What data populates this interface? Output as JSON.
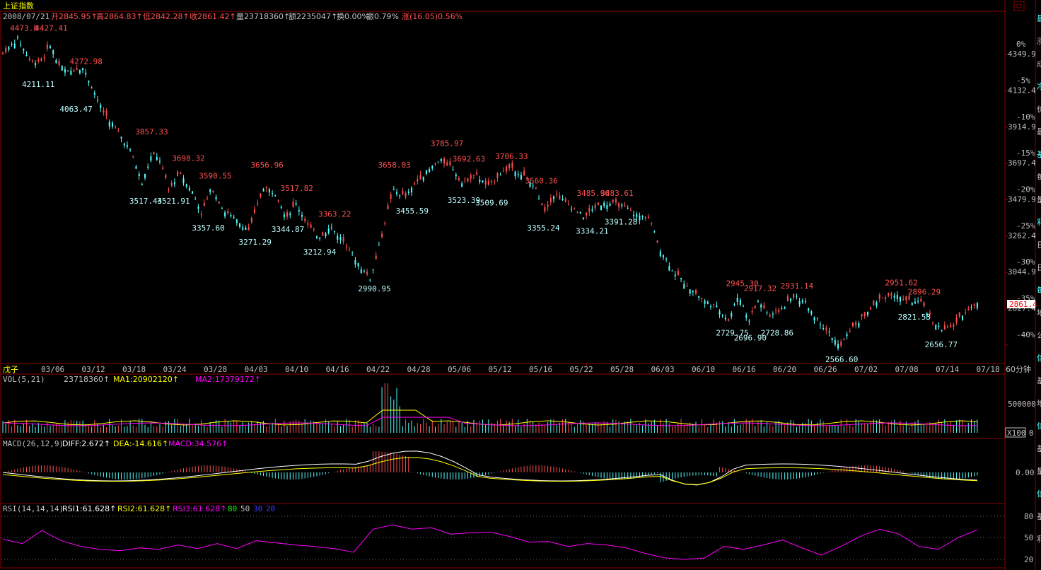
{
  "title": "上证指数",
  "header": {
    "date": "2008/07/21",
    "open": "开2845.95↑",
    "high": "高2864.83↑",
    "low": "低2842.28↑",
    "close": "收2861.42↑",
    "volume": "量23718360↑",
    "amount": "额2235047↑",
    "turnover": "换0.00%",
    "amplitude": "振0.79%",
    "change": "涨(16.05)0.56%"
  },
  "colors": {
    "up": "#ff5050",
    "down": "#54ffff",
    "ma1": "#ffff00",
    "ma2": "#ff00ff",
    "grid": "#8b0000"
  },
  "right_panel_chars": [
    "最",
    "涨",
    "成",
    "净",
    "价",
    "最",
    "基",
    "每",
    "量",
    "利",
    "日",
    "日",
    "每",
    "地",
    "公",
    "信",
    "基",
    "地",
    "信",
    "基",
    "量",
    "信",
    "基",
    "利"
  ],
  "last_price_tag": "2861.4",
  "period_label": "60分钟",
  "x_corner_label": "戊子",
  "date_ticks": [
    "03/06",
    "03/12",
    "03/18",
    "03/24",
    "03/28",
    "04/03",
    "04/10",
    "04/16",
    "04/22",
    "04/28",
    "05/06",
    "05/12",
    "05/16",
    "05/22",
    "05/28",
    "06/03",
    "06/10",
    "06/16",
    "06/20",
    "06/26",
    "07/02",
    "07/08",
    "07/14",
    "07/18"
  ],
  "price_axis": [
    {
      "pct": "0%",
      "price": "4349.9"
    },
    {
      "pct": "-5%",
      "price": "4132.4"
    },
    {
      "pct": "-10%",
      "price": "3914.9"
    },
    {
      "pct": "-15%",
      "price": "3697.4"
    },
    {
      "pct": "-20%",
      "price": "3479.9"
    },
    {
      "pct": "-25%",
      "price": "3262.4"
    },
    {
      "pct": "-30%",
      "price": "3044.9"
    },
    {
      "pct": "-35%",
      "price": "2827.4"
    },
    {
      "pct": "-40%",
      "price": ""
    }
  ],
  "vol_header": {
    "name": "VOL(5,21)",
    "value": "23718360↑",
    "ma1": "MA1:20902120↑",
    "ma2": "MA2:17379172↑"
  },
  "vol_axis": [
    "500000",
    "0"
  ],
  "vol_unit": "X100",
  "macd_header": {
    "name": "MACD(26,12,9)",
    "diff": "DIFF:2.672↑",
    "dea": "DEA:-14.616↑",
    "macd": "MACD:34.576↑"
  },
  "macd_axis": [
    "0.00"
  ],
  "rsi_header": {
    "name": "RSI(14,14,14)",
    "rsi1": "RSI1:61.628↑",
    "rsi2": "RSI2:61.628↑",
    "rsi3": "RSI3:61.628↑",
    "l80": "80",
    "l50": "50",
    "l30": "30",
    "l20": "20"
  },
  "rsi_axis": [
    "80",
    "50",
    "20"
  ],
  "chart_data": {
    "type": "candlestick",
    "price_range": [
      2520,
      4520
    ],
    "annotations": [
      {
        "text": "4473.Ⅲ",
        "x": 0.02,
        "price": 4480,
        "hi": true
      },
      {
        "text": "4427.41",
        "x": 0.045,
        "price": 4480,
        "hi": true
      },
      {
        "text": "4211.11",
        "x": 0.032,
        "price": 4220,
        "hi": false
      },
      {
        "text": "4272.98",
        "x": 0.08,
        "price": 4280,
        "hi": true
      },
      {
        "text": "4063.47",
        "x": 0.07,
        "price": 4070,
        "hi": false
      },
      {
        "text": "3857.33",
        "x": 0.146,
        "price": 3860,
        "hi": true
      },
      {
        "text": "3517.44",
        "x": 0.14,
        "price": 3520,
        "hi": false
      },
      {
        "text": "3698.32",
        "x": 0.183,
        "price": 3700,
        "hi": true
      },
      {
        "text": "3521.91",
        "x": 0.168,
        "price": 3520,
        "hi": false
      },
      {
        "text": "3590.55",
        "x": 0.21,
        "price": 3595,
        "hi": true
      },
      {
        "text": "3357.60",
        "x": 0.203,
        "price": 3360,
        "hi": false
      },
      {
        "text": "3656.96",
        "x": 0.262,
        "price": 3660,
        "hi": true
      },
      {
        "text": "3271.29",
        "x": 0.25,
        "price": 3275,
        "hi": false
      },
      {
        "text": "3517.82",
        "x": 0.292,
        "price": 3520,
        "hi": true
      },
      {
        "text": "3344.87",
        "x": 0.283,
        "price": 3350,
        "hi": false
      },
      {
        "text": "3363.22",
        "x": 0.33,
        "price": 3365,
        "hi": true
      },
      {
        "text": "3212.94",
        "x": 0.315,
        "price": 3215,
        "hi": false
      },
      {
        "text": "2990.95",
        "x": 0.37,
        "price": 2995,
        "hi": false
      },
      {
        "text": "3658.03",
        "x": 0.39,
        "price": 3660,
        "hi": true
      },
      {
        "text": "3455.59",
        "x": 0.408,
        "price": 3460,
        "hi": false
      },
      {
        "text": "3785.97",
        "x": 0.443,
        "price": 3790,
        "hi": true
      },
      {
        "text": "3692.63",
        "x": 0.465,
        "price": 3695,
        "hi": true
      },
      {
        "text": "3523.39",
        "x": 0.46,
        "price": 3525,
        "hi": false
      },
      {
        "text": "3509.69",
        "x": 0.488,
        "price": 3510,
        "hi": false
      },
      {
        "text": "3706.33",
        "x": 0.508,
        "price": 3710,
        "hi": true
      },
      {
        "text": "3560.36",
        "x": 0.538,
        "price": 3565,
        "hi": true
      },
      {
        "text": "3355.24",
        "x": 0.54,
        "price": 3360,
        "hi": false
      },
      {
        "text": "3485.96",
        "x": 0.59,
        "price": 3490,
        "hi": true
      },
      {
        "text": "3483.61",
        "x": 0.614,
        "price": 3490,
        "hi": true
      },
      {
        "text": "3334.21",
        "x": 0.589,
        "price": 3340,
        "hi": false
      },
      {
        "text": "3391.28",
        "x": 0.618,
        "price": 3395,
        "hi": false
      },
      {
        "text": "2945.30",
        "x": 0.74,
        "price": 2950,
        "hi": true
      },
      {
        "text": "2917.32",
        "x": 0.758,
        "price": 2920,
        "hi": true
      },
      {
        "text": "2931.14",
        "x": 0.795,
        "price": 2935,
        "hi": true
      },
      {
        "text": "2729.75",
        "x": 0.73,
        "price": 2730,
        "hi": false
      },
      {
        "text": "2696.90",
        "x": 0.748,
        "price": 2700,
        "hi": false
      },
      {
        "text": "2728.86",
        "x": 0.775,
        "price": 2730,
        "hi": false
      },
      {
        "text": "2566.60",
        "x": 0.84,
        "price": 2570,
        "hi": false
      },
      {
        "text": "2951.62",
        "x": 0.9,
        "price": 2955,
        "hi": true
      },
      {
        "text": "2896.29",
        "x": 0.923,
        "price": 2900,
        "hi": true
      },
      {
        "text": "2821.53",
        "x": 0.913,
        "price": 2825,
        "hi": false
      },
      {
        "text": "2656.77",
        "x": 0.94,
        "price": 2660,
        "hi": false
      }
    ],
    "path": [
      [
        0.0,
        4360
      ],
      [
        0.015,
        4450
      ],
      [
        0.028,
        4310
      ],
      [
        0.04,
        4320
      ],
      [
        0.048,
        4420
      ],
      [
        0.055,
        4300
      ],
      [
        0.065,
        4250
      ],
      [
        0.08,
        4280
      ],
      [
        0.09,
        4160
      ],
      [
        0.1,
        4020
      ],
      [
        0.115,
        3900
      ],
      [
        0.13,
        3760
      ],
      [
        0.14,
        3580
      ],
      [
        0.15,
        3760
      ],
      [
        0.158,
        3720
      ],
      [
        0.167,
        3540
      ],
      [
        0.178,
        3650
      ],
      [
        0.19,
        3540
      ],
      [
        0.2,
        3400
      ],
      [
        0.21,
        3560
      ],
      [
        0.222,
        3420
      ],
      [
        0.235,
        3360
      ],
      [
        0.248,
        3300
      ],
      [
        0.262,
        3560
      ],
      [
        0.275,
        3520
      ],
      [
        0.285,
        3380
      ],
      [
        0.295,
        3460
      ],
      [
        0.308,
        3320
      ],
      [
        0.318,
        3260
      ],
      [
        0.33,
        3320
      ],
      [
        0.345,
        3220
      ],
      [
        0.36,
        3080
      ],
      [
        0.37,
        3010
      ],
      [
        0.38,
        3240
      ],
      [
        0.392,
        3540
      ],
      [
        0.405,
        3500
      ],
      [
        0.42,
        3620
      ],
      [
        0.44,
        3720
      ],
      [
        0.452,
        3680
      ],
      [
        0.462,
        3580
      ],
      [
        0.475,
        3640
      ],
      [
        0.488,
        3560
      ],
      [
        0.5,
        3640
      ],
      [
        0.512,
        3680
      ],
      [
        0.525,
        3620
      ],
      [
        0.535,
        3560
      ],
      [
        0.545,
        3420
      ],
      [
        0.555,
        3520
      ],
      [
        0.57,
        3450
      ],
      [
        0.585,
        3380
      ],
      [
        0.6,
        3460
      ],
      [
        0.615,
        3460
      ],
      [
        0.625,
        3440
      ],
      [
        0.638,
        3390
      ],
      [
        0.65,
        3380
      ],
      [
        0.66,
        3200
      ],
      [
        0.675,
        3050
      ],
      [
        0.69,
        2960
      ],
      [
        0.705,
        2880
      ],
      [
        0.718,
        2840
      ],
      [
        0.73,
        2760
      ],
      [
        0.74,
        2920
      ],
      [
        0.75,
        2760
      ],
      [
        0.76,
        2880
      ],
      [
        0.772,
        2780
      ],
      [
        0.785,
        2840
      ],
      [
        0.795,
        2910
      ],
      [
        0.808,
        2860
      ],
      [
        0.82,
        2760
      ],
      [
        0.832,
        2680
      ],
      [
        0.842,
        2600
      ],
      [
        0.852,
        2700
      ],
      [
        0.865,
        2780
      ],
      [
        0.88,
        2880
      ],
      [
        0.895,
        2920
      ],
      [
        0.91,
        2880
      ],
      [
        0.925,
        2860
      ],
      [
        0.935,
        2760
      ],
      [
        0.945,
        2700
      ],
      [
        0.955,
        2720
      ],
      [
        0.968,
        2820
      ],
      [
        0.98,
        2861
      ]
    ],
    "rsi_path": [
      [
        0.0,
        48
      ],
      [
        0.02,
        42
      ],
      [
        0.04,
        60
      ],
      [
        0.06,
        46
      ],
      [
        0.08,
        38
      ],
      [
        0.1,
        34
      ],
      [
        0.12,
        32
      ],
      [
        0.14,
        36
      ],
      [
        0.16,
        34
      ],
      [
        0.18,
        40
      ],
      [
        0.2,
        35
      ],
      [
        0.22,
        42
      ],
      [
        0.24,
        35
      ],
      [
        0.26,
        46
      ],
      [
        0.28,
        43
      ],
      [
        0.3,
        40
      ],
      [
        0.32,
        38
      ],
      [
        0.34,
        35
      ],
      [
        0.36,
        30
      ],
      [
        0.38,
        62
      ],
      [
        0.4,
        68
      ],
      [
        0.42,
        62
      ],
      [
        0.44,
        64
      ],
      [
        0.46,
        55
      ],
      [
        0.48,
        57
      ],
      [
        0.5,
        58
      ],
      [
        0.52,
        52
      ],
      [
        0.54,
        44
      ],
      [
        0.56,
        45
      ],
      [
        0.58,
        38
      ],
      [
        0.6,
        42
      ],
      [
        0.62,
        40
      ],
      [
        0.64,
        36
      ],
      [
        0.66,
        28
      ],
      [
        0.68,
        22
      ],
      [
        0.7,
        20
      ],
      [
        0.72,
        22
      ],
      [
        0.74,
        38
      ],
      [
        0.76,
        34
      ],
      [
        0.78,
        40
      ],
      [
        0.8,
        47
      ],
      [
        0.82,
        36
      ],
      [
        0.84,
        26
      ],
      [
        0.86,
        38
      ],
      [
        0.88,
        52
      ],
      [
        0.9,
        62
      ],
      [
        0.92,
        55
      ],
      [
        0.94,
        38
      ],
      [
        0.96,
        34
      ],
      [
        0.98,
        50
      ],
      [
        1.0,
        61
      ]
    ]
  }
}
